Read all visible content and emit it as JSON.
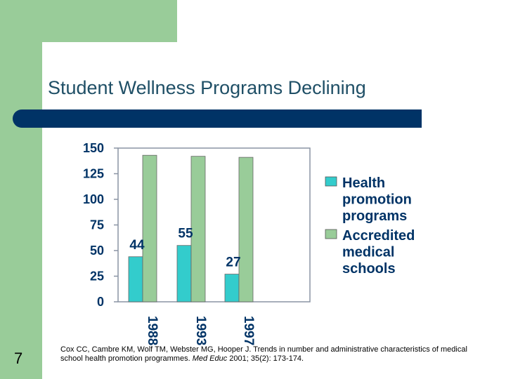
{
  "slide": {
    "title": "Student Wellness Programs Declining",
    "number": "7",
    "citation": {
      "pre": "Cox CC, Cambre KM, Wolf TM, Webster MG, Hooper J. Trends in number and administrative characteristics of medical school health promotion programmes. ",
      "journal": "Med Educ",
      "post": " 2001; 35(2): 173-174."
    }
  },
  "colors": {
    "green_accent": "#99cc99",
    "navy": "#003366",
    "title": "#1f4f66",
    "health": "#33cccc",
    "accredited": "#99cc99"
  },
  "chart_data": {
    "type": "bar",
    "title": "",
    "xlabel": "",
    "ylabel": "",
    "ylim": [
      0,
      150
    ],
    "yticks": [
      0,
      25,
      50,
      75,
      100,
      125,
      150
    ],
    "categories": [
      "1988",
      "1993",
      "1997"
    ],
    "series": [
      {
        "name": "Health promotion programs",
        "legend_lines": [
          "Health",
          "promotion",
          "programs"
        ],
        "color": "#33cccc",
        "values": [
          44,
          55,
          27
        ],
        "labels": [
          "44",
          "55",
          "27"
        ]
      },
      {
        "name": "Accredited medical schools",
        "legend_lines": [
          "Accredited",
          "medical",
          "schools"
        ],
        "color": "#99cc99",
        "values": [
          143,
          142,
          141
        ],
        "labels": [
          "",
          "",
          ""
        ]
      }
    ],
    "legend_position": "right",
    "grid": false
  }
}
